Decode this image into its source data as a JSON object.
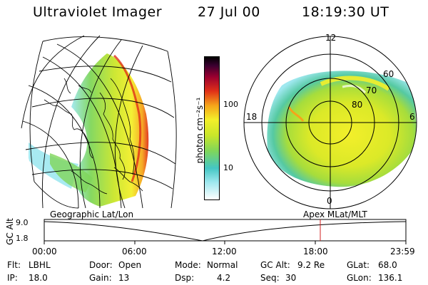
{
  "header": {
    "instrument": "Ultraviolet Imager",
    "date": "27 Jul 00",
    "time": "18:19:30 UT"
  },
  "colorbar": {
    "unit_label": "photon cm⁻²s⁻¹",
    "tick_labels": [
      "100",
      "10"
    ]
  },
  "left_panel": {
    "caption": "Geographic Lat/Lon"
  },
  "right_panel": {
    "caption": "Apex MLat/MLT",
    "mlt_labels": [
      "12",
      "18",
      "6",
      "0"
    ],
    "mlat_labels": [
      "60",
      "70",
      "80"
    ]
  },
  "timeline": {
    "ylabel": "GC Alt",
    "y_ticks": [
      "9.0",
      "1.8"
    ],
    "x_ticks": [
      "00:00",
      "06:00",
      "12:00",
      "18:00",
      "23:59"
    ]
  },
  "info": {
    "filter_label": "Flt:",
    "filter_value": "LBHL",
    "ip_label": "IP:",
    "ip_value": "18.0",
    "door_label": "Door:",
    "door_value": "Open",
    "gain_label": "Gain:",
    "gain_value": "13",
    "mode_label": "Mode:",
    "mode_value": "Normal",
    "dsp_label": "Dsp:",
    "dsp_value": "4.2",
    "gcalt_label": "GC Alt:",
    "gcalt_value": "9.2 Re",
    "seq_label": "Seq:",
    "seq_value": "30",
    "glat_label": "GLat:",
    "glat_value": "68.0",
    "glon_label": "GLon:",
    "glon_value": "136.1"
  },
  "colors": {
    "marker": "#d22020",
    "scale": [
      "#ffffff",
      "#9fe8ef",
      "#44c6c4",
      "#7fd65a",
      "#c9e62a",
      "#f3ef2a",
      "#f5a41a",
      "#e03018",
      "#9b0030",
      "#3a0030",
      "#000000"
    ]
  }
}
